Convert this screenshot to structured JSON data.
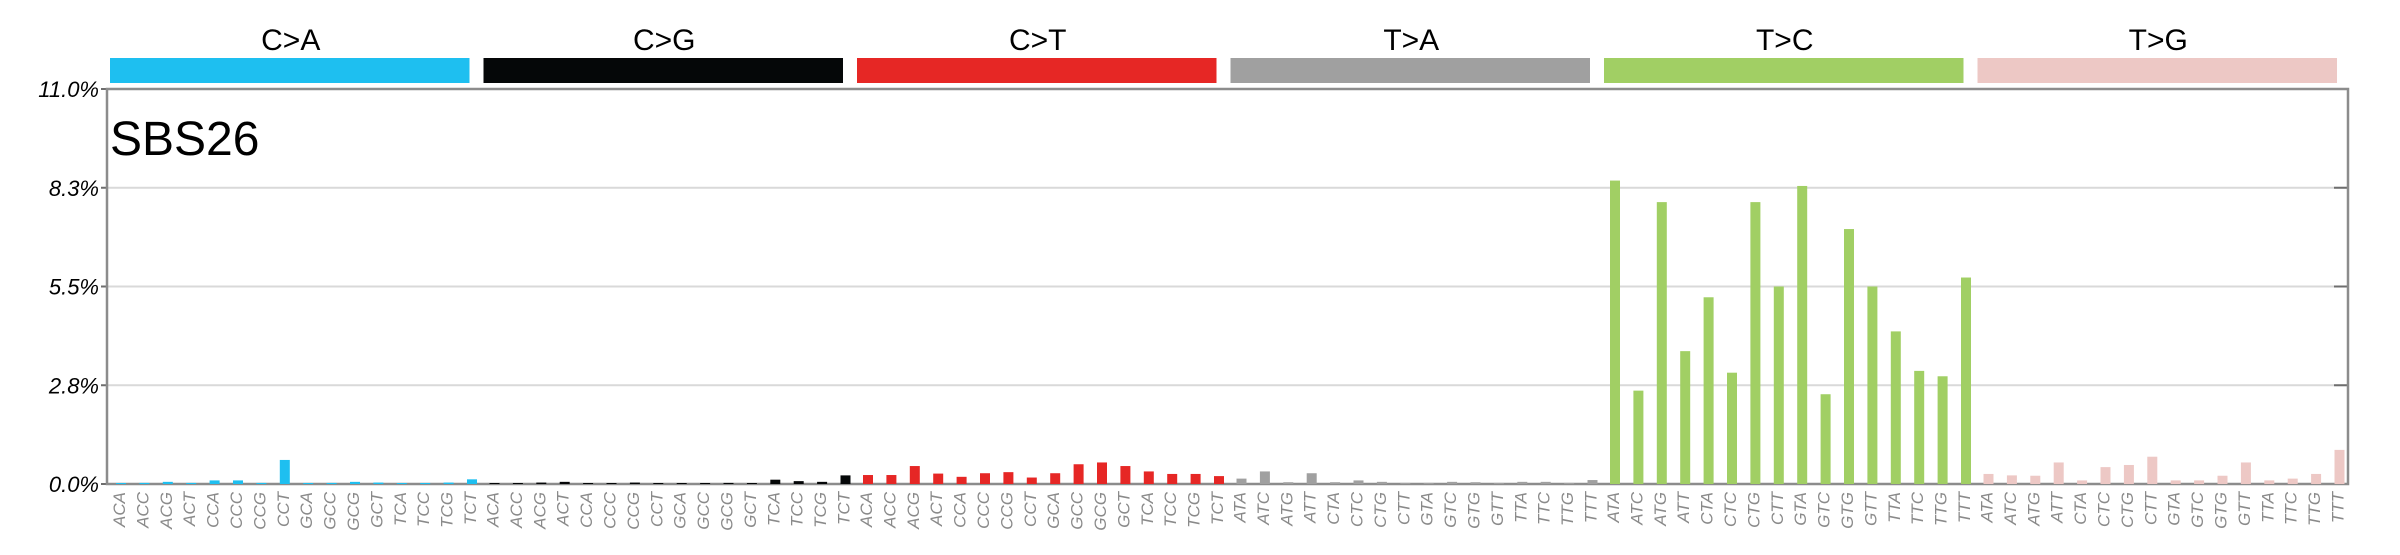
{
  "chart_data": {
    "type": "bar",
    "title": "SBS26",
    "ylim": [
      0,
      11.0
    ],
    "y_ticks": [
      "0.0%",
      "2.8%",
      "5.5%",
      "8.3%",
      "11.0%"
    ],
    "y_tick_values": [
      0,
      2.75,
      5.5,
      8.25,
      11.0
    ],
    "grid": true,
    "groups": [
      {
        "name": "C>A",
        "color": "#1ebff0",
        "categories": [
          "ACA",
          "ACC",
          "ACG",
          "ACT",
          "CCA",
          "CCC",
          "CCG",
          "CCT",
          "GCA",
          "GCC",
          "GCG",
          "GCT",
          "TCA",
          "TCC",
          "TCG",
          "TCT"
        ],
        "values": [
          0.02,
          0.03,
          0.06,
          0.03,
          0.1,
          0.1,
          0.03,
          0.67,
          0.02,
          0.03,
          0.06,
          0.04,
          0.02,
          0.02,
          0.04,
          0.13
        ]
      },
      {
        "name": "C>G",
        "color": "#050708",
        "categories": [
          "ACA",
          "ACC",
          "ACG",
          "ACT",
          "CCA",
          "CCC",
          "CCG",
          "CCT",
          "GCA",
          "GCC",
          "GCG",
          "GCT",
          "TCA",
          "TCC",
          "TCG",
          "TCT"
        ],
        "values": [
          0.02,
          0.02,
          0.04,
          0.06,
          0.02,
          0.02,
          0.04,
          0.02,
          0.01,
          0.02,
          0.03,
          0.02,
          0.12,
          0.08,
          0.06,
          0.24
        ]
      },
      {
        "name": "C>T",
        "color": "#e62725",
        "categories": [
          "ACA",
          "ACC",
          "ACG",
          "ACT",
          "CCA",
          "CCC",
          "CCG",
          "CCT",
          "GCA",
          "GCC",
          "GCG",
          "GCT",
          "TCA",
          "TCC",
          "TCG",
          "TCT"
        ],
        "values": [
          0.25,
          0.25,
          0.5,
          0.29,
          0.2,
          0.3,
          0.33,
          0.18,
          0.3,
          0.55,
          0.6,
          0.5,
          0.35,
          0.28,
          0.28,
          0.22
        ]
      },
      {
        "name": "T>A",
        "color": "#a0a0a0",
        "categories": [
          "ATA",
          "ATC",
          "ATG",
          "ATT",
          "CTA",
          "CTC",
          "CTG",
          "CTT",
          "GTA",
          "GTC",
          "GTG",
          "GTT",
          "TTA",
          "TTC",
          "TTG",
          "TTT"
        ],
        "values": [
          0.15,
          0.35,
          0.05,
          0.3,
          0.05,
          0.1,
          0.06,
          0.03,
          0.03,
          0.06,
          0.05,
          0.03,
          0.06,
          0.06,
          0.03,
          0.11
        ]
      },
      {
        "name": "T>C",
        "color": "#a1cf64",
        "categories": [
          "ATA",
          "ATC",
          "ATG",
          "ATT",
          "CTA",
          "CTC",
          "CTG",
          "CTT",
          "GTA",
          "GTC",
          "GTG",
          "GTT",
          "TTA",
          "TTC",
          "TTG",
          "TTT"
        ],
        "values": [
          8.45,
          2.6,
          7.85,
          3.7,
          5.2,
          3.1,
          7.85,
          5.5,
          8.3,
          2.5,
          7.1,
          5.5,
          4.25,
          3.15,
          3.0,
          5.75
        ]
      },
      {
        "name": "T>G",
        "color": "#edc8c5",
        "categories": [
          "ATA",
          "ATC",
          "ATG",
          "ATT",
          "CTA",
          "CTC",
          "CTG",
          "CTT",
          "GTA",
          "GTC",
          "GTG",
          "GTT",
          "TTA",
          "TTC",
          "TTG",
          "TTT"
        ],
        "values": [
          0.28,
          0.24,
          0.23,
          0.6,
          0.1,
          0.47,
          0.53,
          0.76,
          0.1,
          0.1,
          0.23,
          0.6,
          0.1,
          0.15,
          0.28,
          0.95
        ]
      }
    ]
  }
}
